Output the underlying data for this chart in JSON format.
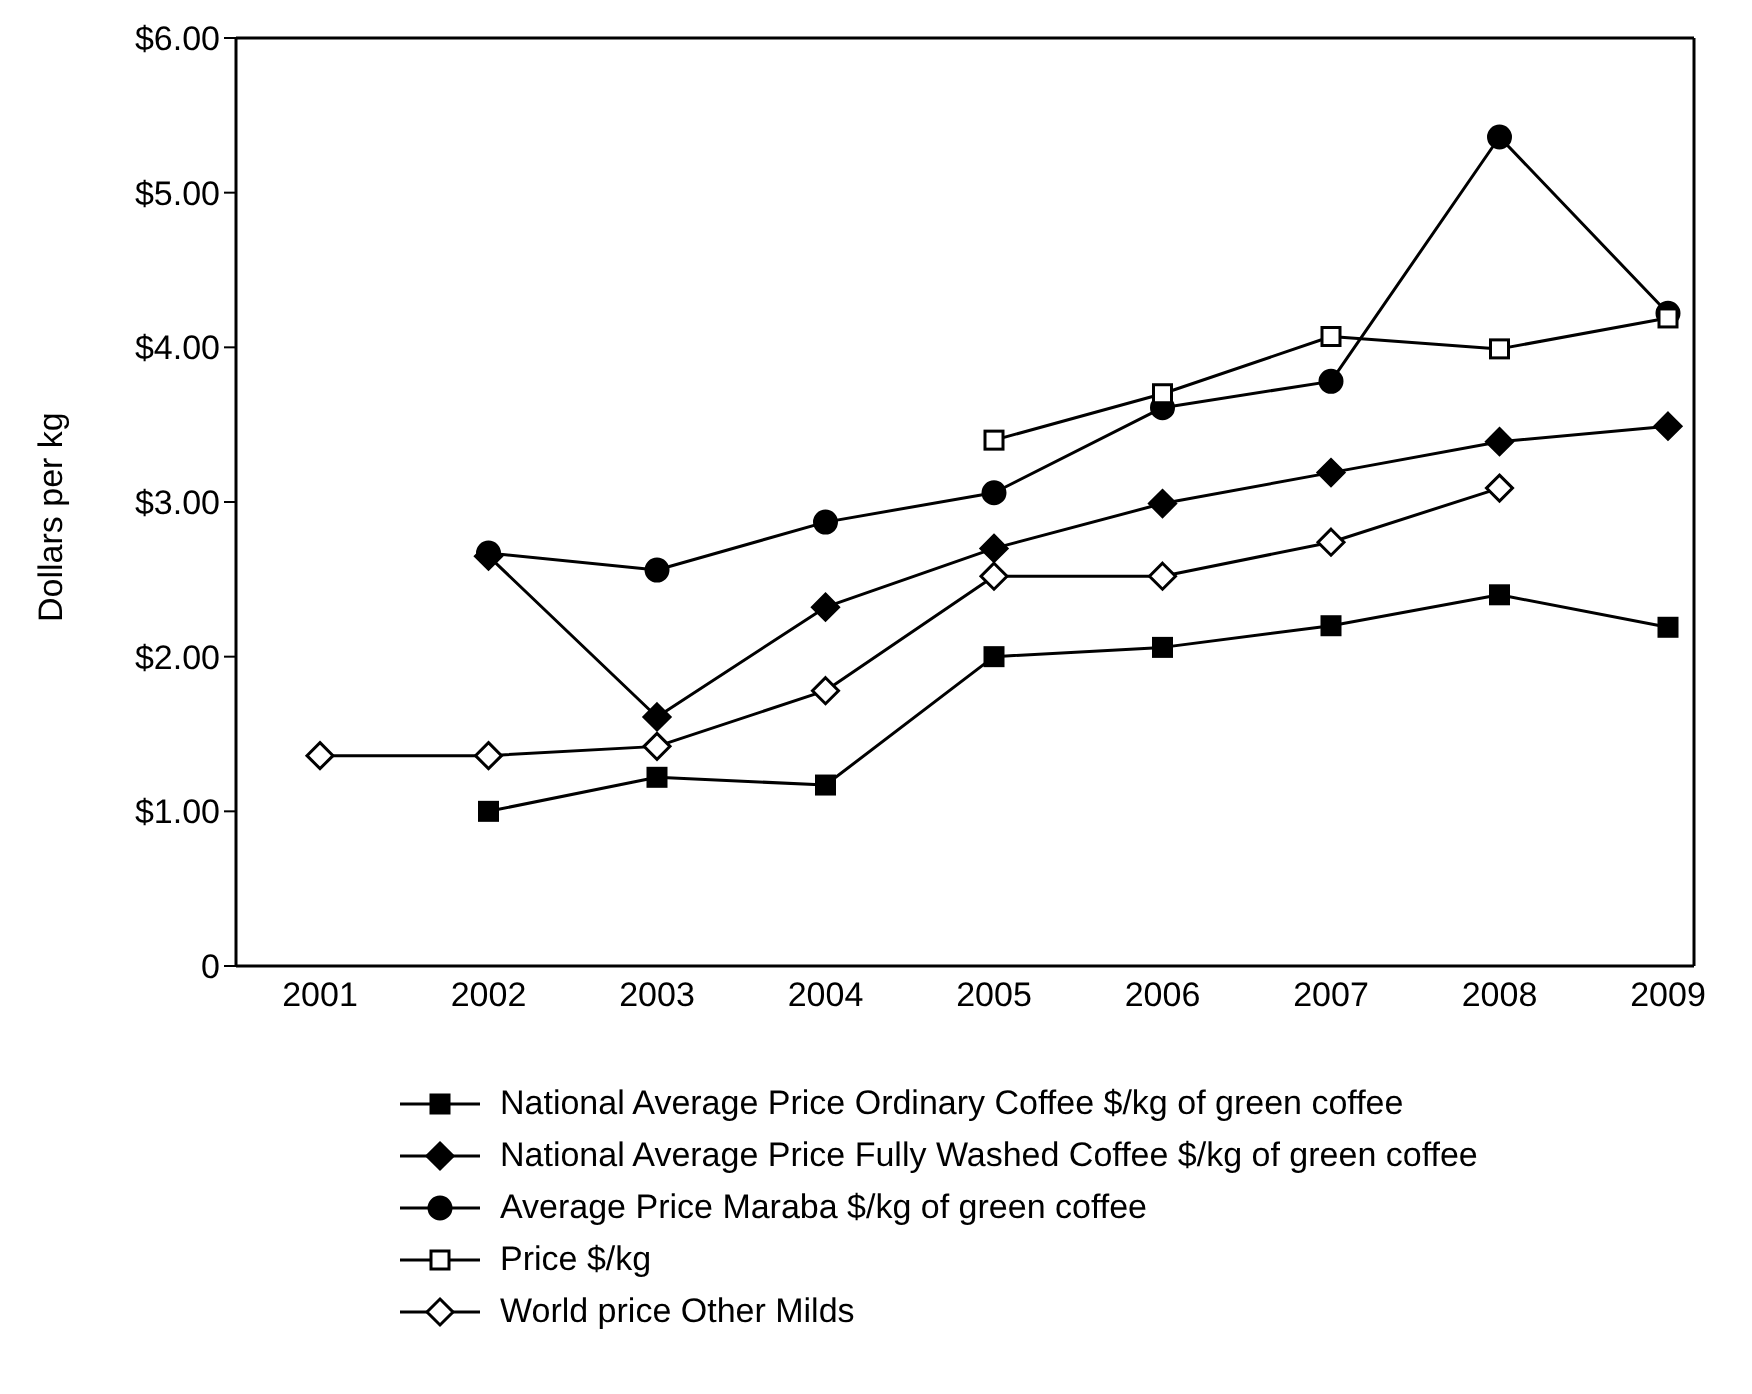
{
  "chart_data": {
    "type": "line",
    "ylabel": "Dollars per kg",
    "categories": [
      "2001",
      "2002",
      "2003",
      "2004",
      "2005",
      "2006",
      "2007",
      "2008",
      "2009"
    ],
    "ylim": [
      0,
      6
    ],
    "yticks": [
      0,
      {
        "value": 1,
        "label": "$1.00"
      },
      {
        "value": 2,
        "label": "$2.00"
      },
      {
        "value": 3,
        "label": "$3.00"
      },
      {
        "value": 4,
        "label": "$4.00"
      },
      {
        "value": 5,
        "label": "$5.00"
      },
      {
        "value": 6,
        "label": "$6.00"
      }
    ],
    "grid": false,
    "legend": "bottom",
    "line_style": "solid",
    "series": [
      {
        "name": "National Average Price Ordinary Coffee $/kg of green coffee",
        "color": "#000000",
        "marker": "square",
        "values": [
          null,
          1.0,
          1.22,
          1.17,
          2.0,
          2.06,
          2.2,
          2.4,
          2.19
        ]
      },
      {
        "name": "National Average Price Fully Washed Coffee $/kg of green coffee",
        "color": "#000000",
        "marker": "diamond",
        "values": [
          null,
          2.65,
          1.61,
          2.32,
          2.7,
          2.99,
          3.19,
          3.39,
          3.49
        ]
      },
      {
        "name": "Average Price Maraba $/kg of green coffee",
        "color": "#000000",
        "marker": "circle",
        "values": [
          null,
          2.67,
          2.56,
          2.87,
          3.06,
          3.61,
          3.78,
          5.36,
          4.22
        ]
      },
      {
        "name": "Price $/kg",
        "color": "#000000",
        "marker": "square",
        "values": [
          null,
          null,
          null,
          null,
          3.4,
          3.7,
          4.07,
          3.99,
          4.19
        ]
      },
      {
        "name": "World price Other Milds",
        "color": "#000000",
        "marker": "diamond",
        "values": [
          1.36,
          1.36,
          1.42,
          1.78,
          2.52,
          2.52,
          2.74,
          3.09,
          null
        ]
      }
    ]
  }
}
